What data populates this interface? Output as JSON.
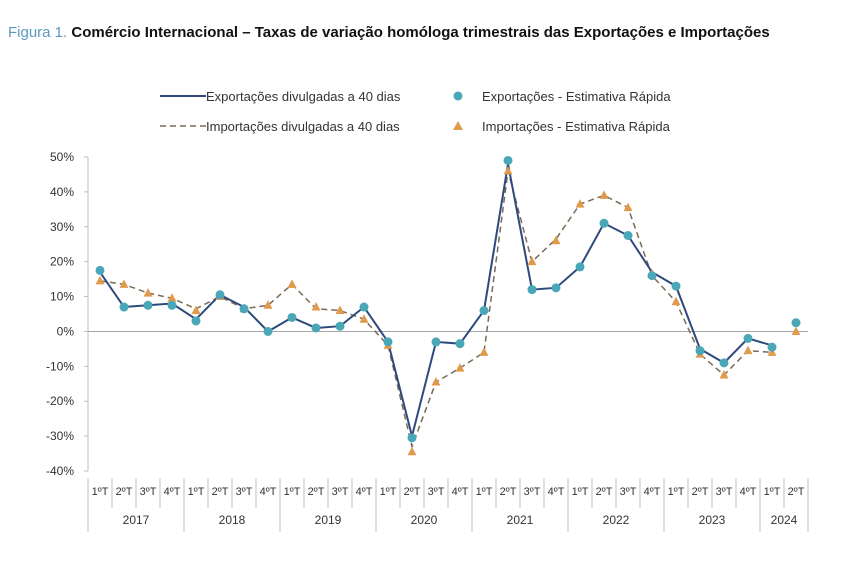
{
  "figure": {
    "label": "Figura 1.",
    "title": "Comércio Internacional – Taxas de variação homóloga trimestrais das Exportações e Importações"
  },
  "legend": {
    "exp_line": "Exportações divulgadas  a 40 dias",
    "imp_line": "Importações divulgadas a 40 dias",
    "exp_dot": "Exportações - Estimativa Rápida",
    "imp_dot": "Importações - Estimativa Rápida"
  },
  "colors": {
    "exports": "#2e4a7d",
    "exports_marker": "#4aa7b7",
    "imports": "#7a6a55",
    "imports_marker": "#e19a4c"
  },
  "chart_data": {
    "type": "line",
    "ylim": [
      -40,
      50
    ],
    "yticks": [
      "50%",
      "40%",
      "30%",
      "20%",
      "10%",
      "0%",
      "-10%",
      "-20%",
      "-30%",
      "-40%"
    ],
    "ytick_values": [
      50,
      40,
      30,
      20,
      10,
      0,
      -10,
      -20,
      -30,
      -40
    ],
    "quarter_labels": [
      "1ºT",
      "2ºT",
      "3ºT",
      "4ºT",
      "1ºT",
      "2ºT",
      "3ºT",
      "4ºT",
      "1ºT",
      "2ºT",
      "3ºT",
      "4ºT",
      "1ºT",
      "2ºT",
      "3ºT",
      "4ºT",
      "1ºT",
      "2ºT",
      "3ºT",
      "4ºT",
      "1ºT",
      "2ºT",
      "3ºT",
      "4ºT",
      "1ºT",
      "2ºT",
      "3ºT",
      "4ºT",
      "1ºT",
      "2ºT"
    ],
    "years": [
      {
        "label": "2017",
        "quarters": 4
      },
      {
        "label": "2018",
        "quarters": 4
      },
      {
        "label": "2019",
        "quarters": 4
      },
      {
        "label": "2020",
        "quarters": 4
      },
      {
        "label": "2021",
        "quarters": 4
      },
      {
        "label": "2022",
        "quarters": 4
      },
      {
        "label": "2023",
        "quarters": 4
      },
      {
        "label": "2024",
        "quarters": 2
      }
    ],
    "series": [
      {
        "name": "Exportações divulgadas  a 40 dias",
        "style": "solid",
        "values": [
          17,
          7,
          7.5,
          8,
          3.5,
          10.5,
          7,
          0,
          4,
          1,
          1.5,
          7,
          -3,
          -30,
          -3,
          -3.5,
          6,
          48,
          12,
          12.5,
          18.5,
          31,
          27.5,
          17,
          13,
          -5,
          -9,
          -2,
          -4,
          null
        ]
      },
      {
        "name": "Importações divulgadas a 40 dias",
        "style": "dashed",
        "values": [
          14.5,
          13.5,
          11,
          9.5,
          6.5,
          10,
          6.5,
          7.5,
          13.5,
          6.5,
          6,
          3.5,
          -4,
          -33,
          -14.5,
          -10.5,
          -6,
          46,
          20,
          26.5,
          36.5,
          39,
          35.5,
          16,
          8.5,
          -6.5,
          -12.5,
          -5.5,
          -6,
          null
        ]
      },
      {
        "name": "Exportações - Estimativa Rápida",
        "style": "marker-circle",
        "values": [
          17.5,
          7,
          7.5,
          7.5,
          3,
          10.5,
          6.5,
          0,
          4,
          1,
          1.5,
          7,
          -3,
          -30.5,
          -3,
          -3.5,
          6,
          49,
          12,
          12.5,
          18.5,
          31,
          27.5,
          16,
          13,
          -5.5,
          -9,
          -2,
          -4.5,
          2.5
        ]
      },
      {
        "name": "Importações - Estimativa Rápida",
        "style": "marker-triangle",
        "values": [
          14.5,
          13.5,
          11,
          9.5,
          6,
          10,
          6.5,
          7.5,
          13.5,
          7,
          6,
          3.5,
          -4,
          -34.5,
          -14.5,
          -10.5,
          -6,
          46,
          20,
          26,
          36.5,
          39,
          35.5,
          16.5,
          8.5,
          -6.5,
          -12.5,
          -5.5,
          -6,
          0
        ]
      }
    ]
  }
}
